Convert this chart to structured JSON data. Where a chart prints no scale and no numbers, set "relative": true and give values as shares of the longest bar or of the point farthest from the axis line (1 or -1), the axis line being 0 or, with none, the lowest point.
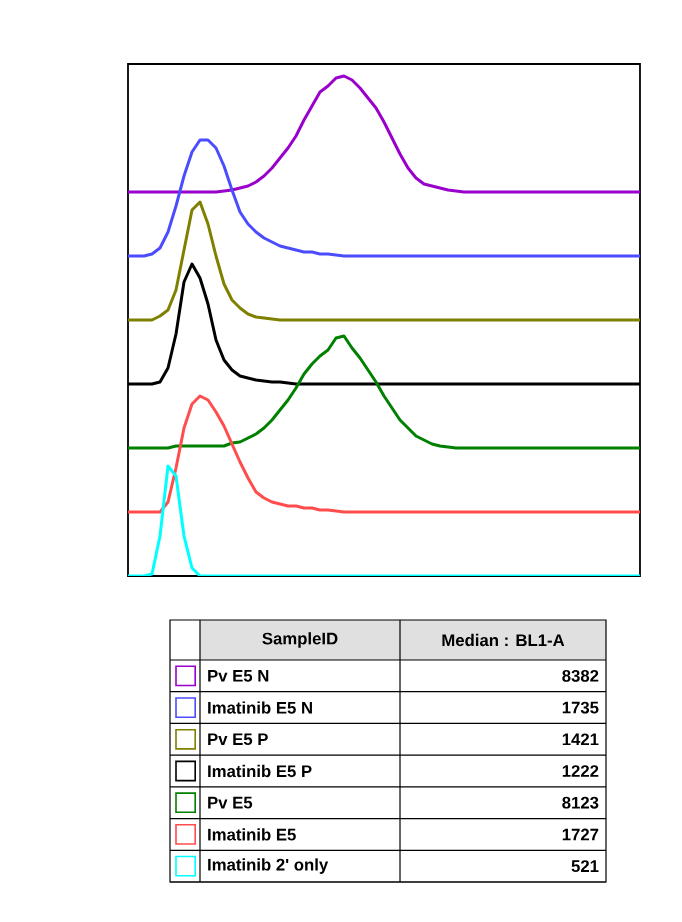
{
  "chart_data": {
    "type": "line",
    "relative": true,
    "legend": "bottom",
    "legend_title": "SampleID",
    "annotations": [
      "Median : BL1-A",
      "8382",
      "1735",
      "1421",
      "1222",
      "8123",
      "1727",
      "521"
    ],
    "categories": [
      null,
      null,
      null,
      null,
      null,
      null,
      null,
      null,
      null,
      null,
      null,
      null,
      null,
      null,
      null,
      null,
      null,
      null,
      null,
      null,
      null,
      null,
      null,
      null,
      null,
      null,
      null,
      null,
      null,
      null,
      null,
      null,
      null,
      null,
      null,
      null,
      null,
      null,
      null,
      null,
      null,
      null,
      null,
      null,
      null,
      null,
      null,
      null,
      null,
      null,
      null,
      null,
      null,
      null,
      null,
      null,
      null,
      null,
      null,
      null,
      null,
      null,
      null,
      null,
      null
    ],
    "series": [
      {
        "name": "Pv E5 N",
        "color": "#9900cc",
        "values": [
          0.768,
          0.768,
          0.768,
          0.768,
          0.768,
          0.768,
          0.768,
          0.768,
          0.768,
          0.768,
          0.768,
          0.768,
          0.77,
          0.772,
          0.776,
          0.78,
          0.788,
          0.8,
          0.816,
          0.836,
          0.856,
          0.88,
          0.912,
          0.94,
          0.968,
          0.98,
          0.996,
          1.0,
          0.992,
          0.976,
          0.956,
          0.936,
          0.908,
          0.876,
          0.844,
          0.816,
          0.796,
          0.784,
          0.78,
          0.776,
          0.772,
          0.77,
          0.768,
          0.768,
          0.768,
          0.768,
          0.768,
          0.768,
          0.768,
          0.768,
          0.768,
          0.768,
          0.768,
          0.768,
          0.768,
          0.768,
          0.768,
          0.768,
          0.768,
          0.768,
          0.768,
          0.768,
          0.768,
          0.768,
          0.768
        ]
      },
      {
        "name": "Imatinib E5 N",
        "color": "#4c4cff",
        "values": [
          0.64,
          0.64,
          0.64,
          0.644,
          0.656,
          0.688,
          0.74,
          0.8,
          0.848,
          0.872,
          0.872,
          0.856,
          0.82,
          0.772,
          0.728,
          0.704,
          0.688,
          0.676,
          0.668,
          0.66,
          0.656,
          0.652,
          0.648,
          0.648,
          0.644,
          0.644,
          0.642,
          0.64,
          0.64,
          0.64,
          0.64,
          0.64,
          0.64,
          0.64,
          0.64,
          0.64,
          0.64,
          0.64,
          0.64,
          0.64,
          0.64,
          0.64,
          0.64,
          0.64,
          0.64,
          0.64,
          0.64,
          0.64,
          0.64,
          0.64,
          0.64,
          0.64,
          0.64,
          0.64,
          0.64,
          0.64,
          0.64,
          0.64,
          0.64,
          0.64,
          0.64,
          0.64,
          0.64,
          0.64,
          0.64
        ]
      },
      {
        "name": "Pv E5 P",
        "color": "#808000",
        "values": [
          0.512,
          0.512,
          0.512,
          0.512,
          0.52,
          0.532,
          0.572,
          0.652,
          0.732,
          0.748,
          0.704,
          0.64,
          0.584,
          0.552,
          0.536,
          0.524,
          0.518,
          0.516,
          0.514,
          0.512,
          0.512,
          0.512,
          0.512,
          0.512,
          0.512,
          0.512,
          0.512,
          0.512,
          0.512,
          0.512,
          0.512,
          0.512,
          0.512,
          0.512,
          0.512,
          0.512,
          0.512,
          0.512,
          0.512,
          0.512,
          0.512,
          0.512,
          0.512,
          0.512,
          0.512,
          0.512,
          0.512,
          0.512,
          0.512,
          0.512,
          0.512,
          0.512,
          0.512,
          0.512,
          0.512,
          0.512,
          0.512,
          0.512,
          0.512,
          0.512,
          0.512,
          0.512,
          0.512,
          0.512,
          0.512
        ]
      },
      {
        "name": "Imatinib E5 P",
        "color": "#000000",
        "values": [
          0.384,
          0.384,
          0.384,
          0.384,
          0.388,
          0.416,
          0.484,
          0.588,
          0.624,
          0.596,
          0.544,
          0.472,
          0.432,
          0.412,
          0.4,
          0.396,
          0.392,
          0.39,
          0.388,
          0.388,
          0.386,
          0.384,
          0.384,
          0.384,
          0.384,
          0.384,
          0.384,
          0.384,
          0.384,
          0.384,
          0.384,
          0.384,
          0.384,
          0.384,
          0.384,
          0.384,
          0.384,
          0.384,
          0.384,
          0.384,
          0.384,
          0.384,
          0.384,
          0.384,
          0.384,
          0.384,
          0.384,
          0.384,
          0.384,
          0.384,
          0.384,
          0.384,
          0.384,
          0.384,
          0.384,
          0.384,
          0.384,
          0.384,
          0.384,
          0.384,
          0.384,
          0.384,
          0.384,
          0.384,
          0.384
        ]
      },
      {
        "name": "Pv E5",
        "color": "#008000",
        "values": [
          0.256,
          0.256,
          0.256,
          0.256,
          0.256,
          0.256,
          0.26,
          0.26,
          0.26,
          0.26,
          0.26,
          0.26,
          0.26,
          0.266,
          0.268,
          0.276,
          0.284,
          0.296,
          0.312,
          0.332,
          0.352,
          0.376,
          0.404,
          0.424,
          0.44,
          0.452,
          0.476,
          0.48,
          0.456,
          0.436,
          0.412,
          0.388,
          0.36,
          0.336,
          0.312,
          0.296,
          0.28,
          0.272,
          0.264,
          0.26,
          0.258,
          0.256,
          0.256,
          0.256,
          0.256,
          0.256,
          0.256,
          0.256,
          0.256,
          0.256,
          0.256,
          0.256,
          0.256,
          0.256,
          0.256,
          0.256,
          0.256,
          0.256,
          0.256,
          0.256,
          0.256,
          0.256,
          0.256,
          0.256,
          0.256
        ]
      },
      {
        "name": "Imatinib E5",
        "color": "#ff4c4c",
        "values": [
          0.128,
          0.128,
          0.128,
          0.128,
          0.128,
          0.148,
          0.216,
          0.296,
          0.344,
          0.36,
          0.352,
          0.328,
          0.3,
          0.264,
          0.228,
          0.196,
          0.168,
          0.156,
          0.148,
          0.144,
          0.14,
          0.14,
          0.136,
          0.136,
          0.132,
          0.132,
          0.13,
          0.128,
          0.128,
          0.128,
          0.128,
          0.128,
          0.128,
          0.128,
          0.128,
          0.128,
          0.128,
          0.128,
          0.128,
          0.128,
          0.128,
          0.128,
          0.128,
          0.128,
          0.128,
          0.128,
          0.128,
          0.128,
          0.128,
          0.128,
          0.128,
          0.128,
          0.128,
          0.128,
          0.128,
          0.128,
          0.128,
          0.128,
          0.128,
          0.128,
          0.128,
          0.128,
          0.128,
          0.128,
          0.128
        ]
      },
      {
        "name": "Imatinib 2' only",
        "color": "#00ffff",
        "values": [
          0,
          0,
          0,
          0.004,
          0.08,
          0.22,
          0.2,
          0.08,
          0.016,
          0,
          0,
          0,
          0,
          0,
          0,
          0,
          0,
          0,
          0,
          0,
          0,
          0,
          0,
          0,
          0,
          0,
          0,
          0,
          0,
          0,
          0,
          0,
          0,
          0,
          0,
          0,
          0,
          0,
          0,
          0,
          0,
          0,
          0,
          0,
          0,
          0,
          0,
          0,
          0,
          0,
          0,
          0,
          0,
          0,
          0,
          0,
          0,
          0,
          0,
          0,
          0,
          0,
          0,
          0,
          0
        ]
      }
    ]
  }
}
